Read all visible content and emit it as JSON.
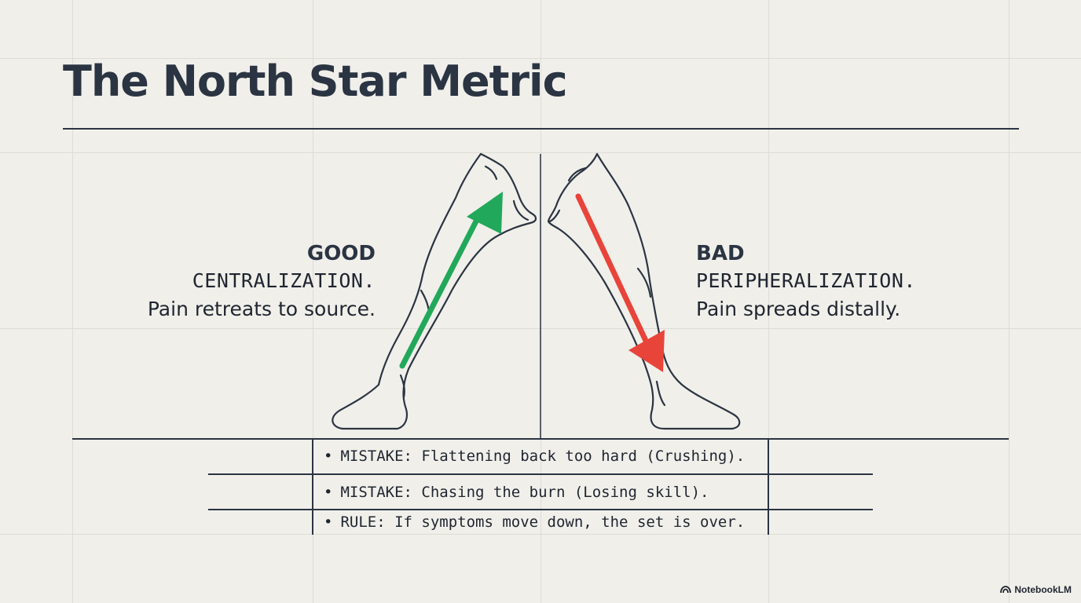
{
  "title": "The North Star Metric",
  "good": {
    "heading": "GOOD",
    "term": "CENTRALIZATION.",
    "description": "Pain retreats to source.",
    "arrow_color": "#22a85a"
  },
  "bad": {
    "heading": "BAD",
    "term": "PERIPHERALIZATION.",
    "description": "Pain spreads distally.",
    "arrow_color": "#e8443a"
  },
  "rules": [
    "MISTAKE: Flattening back too hard (Crushing).",
    "MISTAKE: Chasing the burn (Losing skill).",
    "RULE: If symptoms move down, the set is over."
  ],
  "brand": "NotebookLM",
  "colors": {
    "background": "#f0efea",
    "ink": "#2b3442"
  }
}
